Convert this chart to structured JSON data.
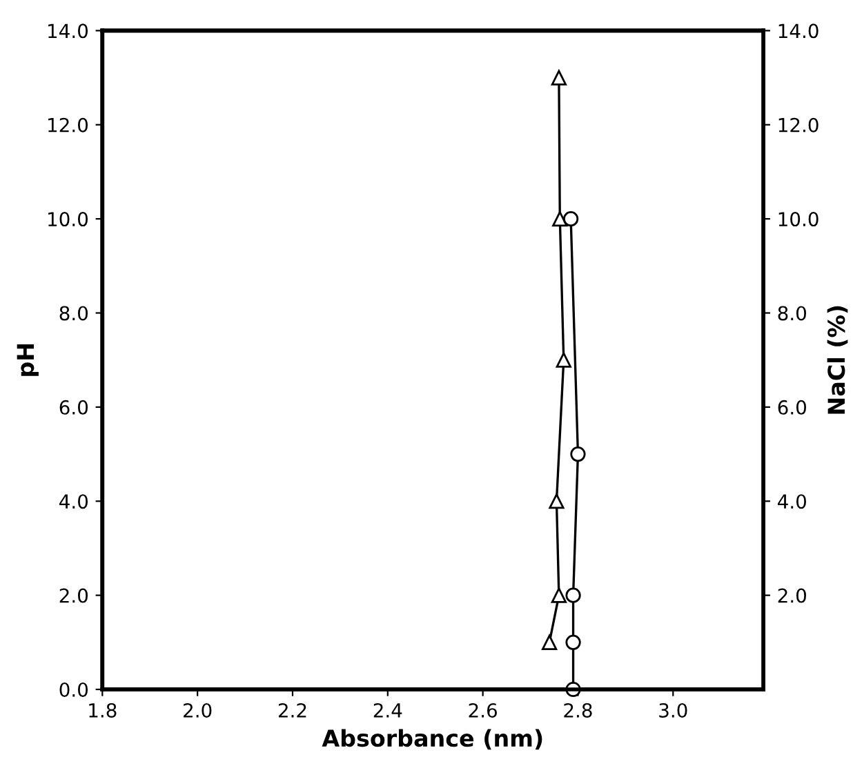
{
  "chart_data": {
    "type": "line",
    "xlabel": "Absorbance (nm)",
    "ylabel": "pH",
    "y2label": "NaCl (%)",
    "xlim": [
      1.8,
      3.19
    ],
    "xticks": [
      1.8,
      {
        "value": 2.0,
        "label": "2.0"
      },
      2.2,
      2.4,
      2.6,
      2.8,
      {
        "value": 3.0,
        "label": "3.0"
      }
    ],
    "ylim": [
      0,
      14
    ],
    "yticks": [
      {
        "value": 0,
        "label": "0.0"
      },
      {
        "value": 2,
        "label": "2.0"
      },
      {
        "value": 4,
        "label": "4.0"
      },
      {
        "value": 6,
        "label": "6.0"
      },
      {
        "value": 8,
        "label": "8.0"
      },
      {
        "value": 10,
        "label": "10.0"
      },
      {
        "value": 12,
        "label": "12.0"
      },
      {
        "value": 14,
        "label": "14.0"
      }
    ],
    "y2lim": [
      0,
      14
    ],
    "y2ticks": [
      {
        "value": 2,
        "label": "2.0"
      },
      {
        "value": 4,
        "label": "4.0"
      },
      {
        "value": 6,
        "label": "6.0"
      },
      {
        "value": 8,
        "label": "8.0"
      },
      {
        "value": 10,
        "label": "10.0"
      },
      {
        "value": 12,
        "label": "12.0"
      },
      {
        "value": 14,
        "label": "14.0"
      }
    ],
    "grid": false,
    "line_style": "solid",
    "series": [
      {
        "color": "#000000",
        "marker": "triangle",
        "x": [
          2.74,
          2.76,
          2.755,
          2.77,
          2.762,
          2.76
        ],
        "values": [
          1.0,
          2.0,
          4.0,
          7.0,
          10.0,
          13.0
        ]
      },
      {
        "color": "#000000",
        "marker": "circle",
        "axis": "y2",
        "x": [
          2.79,
          2.79,
          2.79,
          2.8,
          2.785
        ],
        "values": [
          0,
          1.0,
          2.0,
          5.0,
          10.0
        ]
      }
    ]
  }
}
